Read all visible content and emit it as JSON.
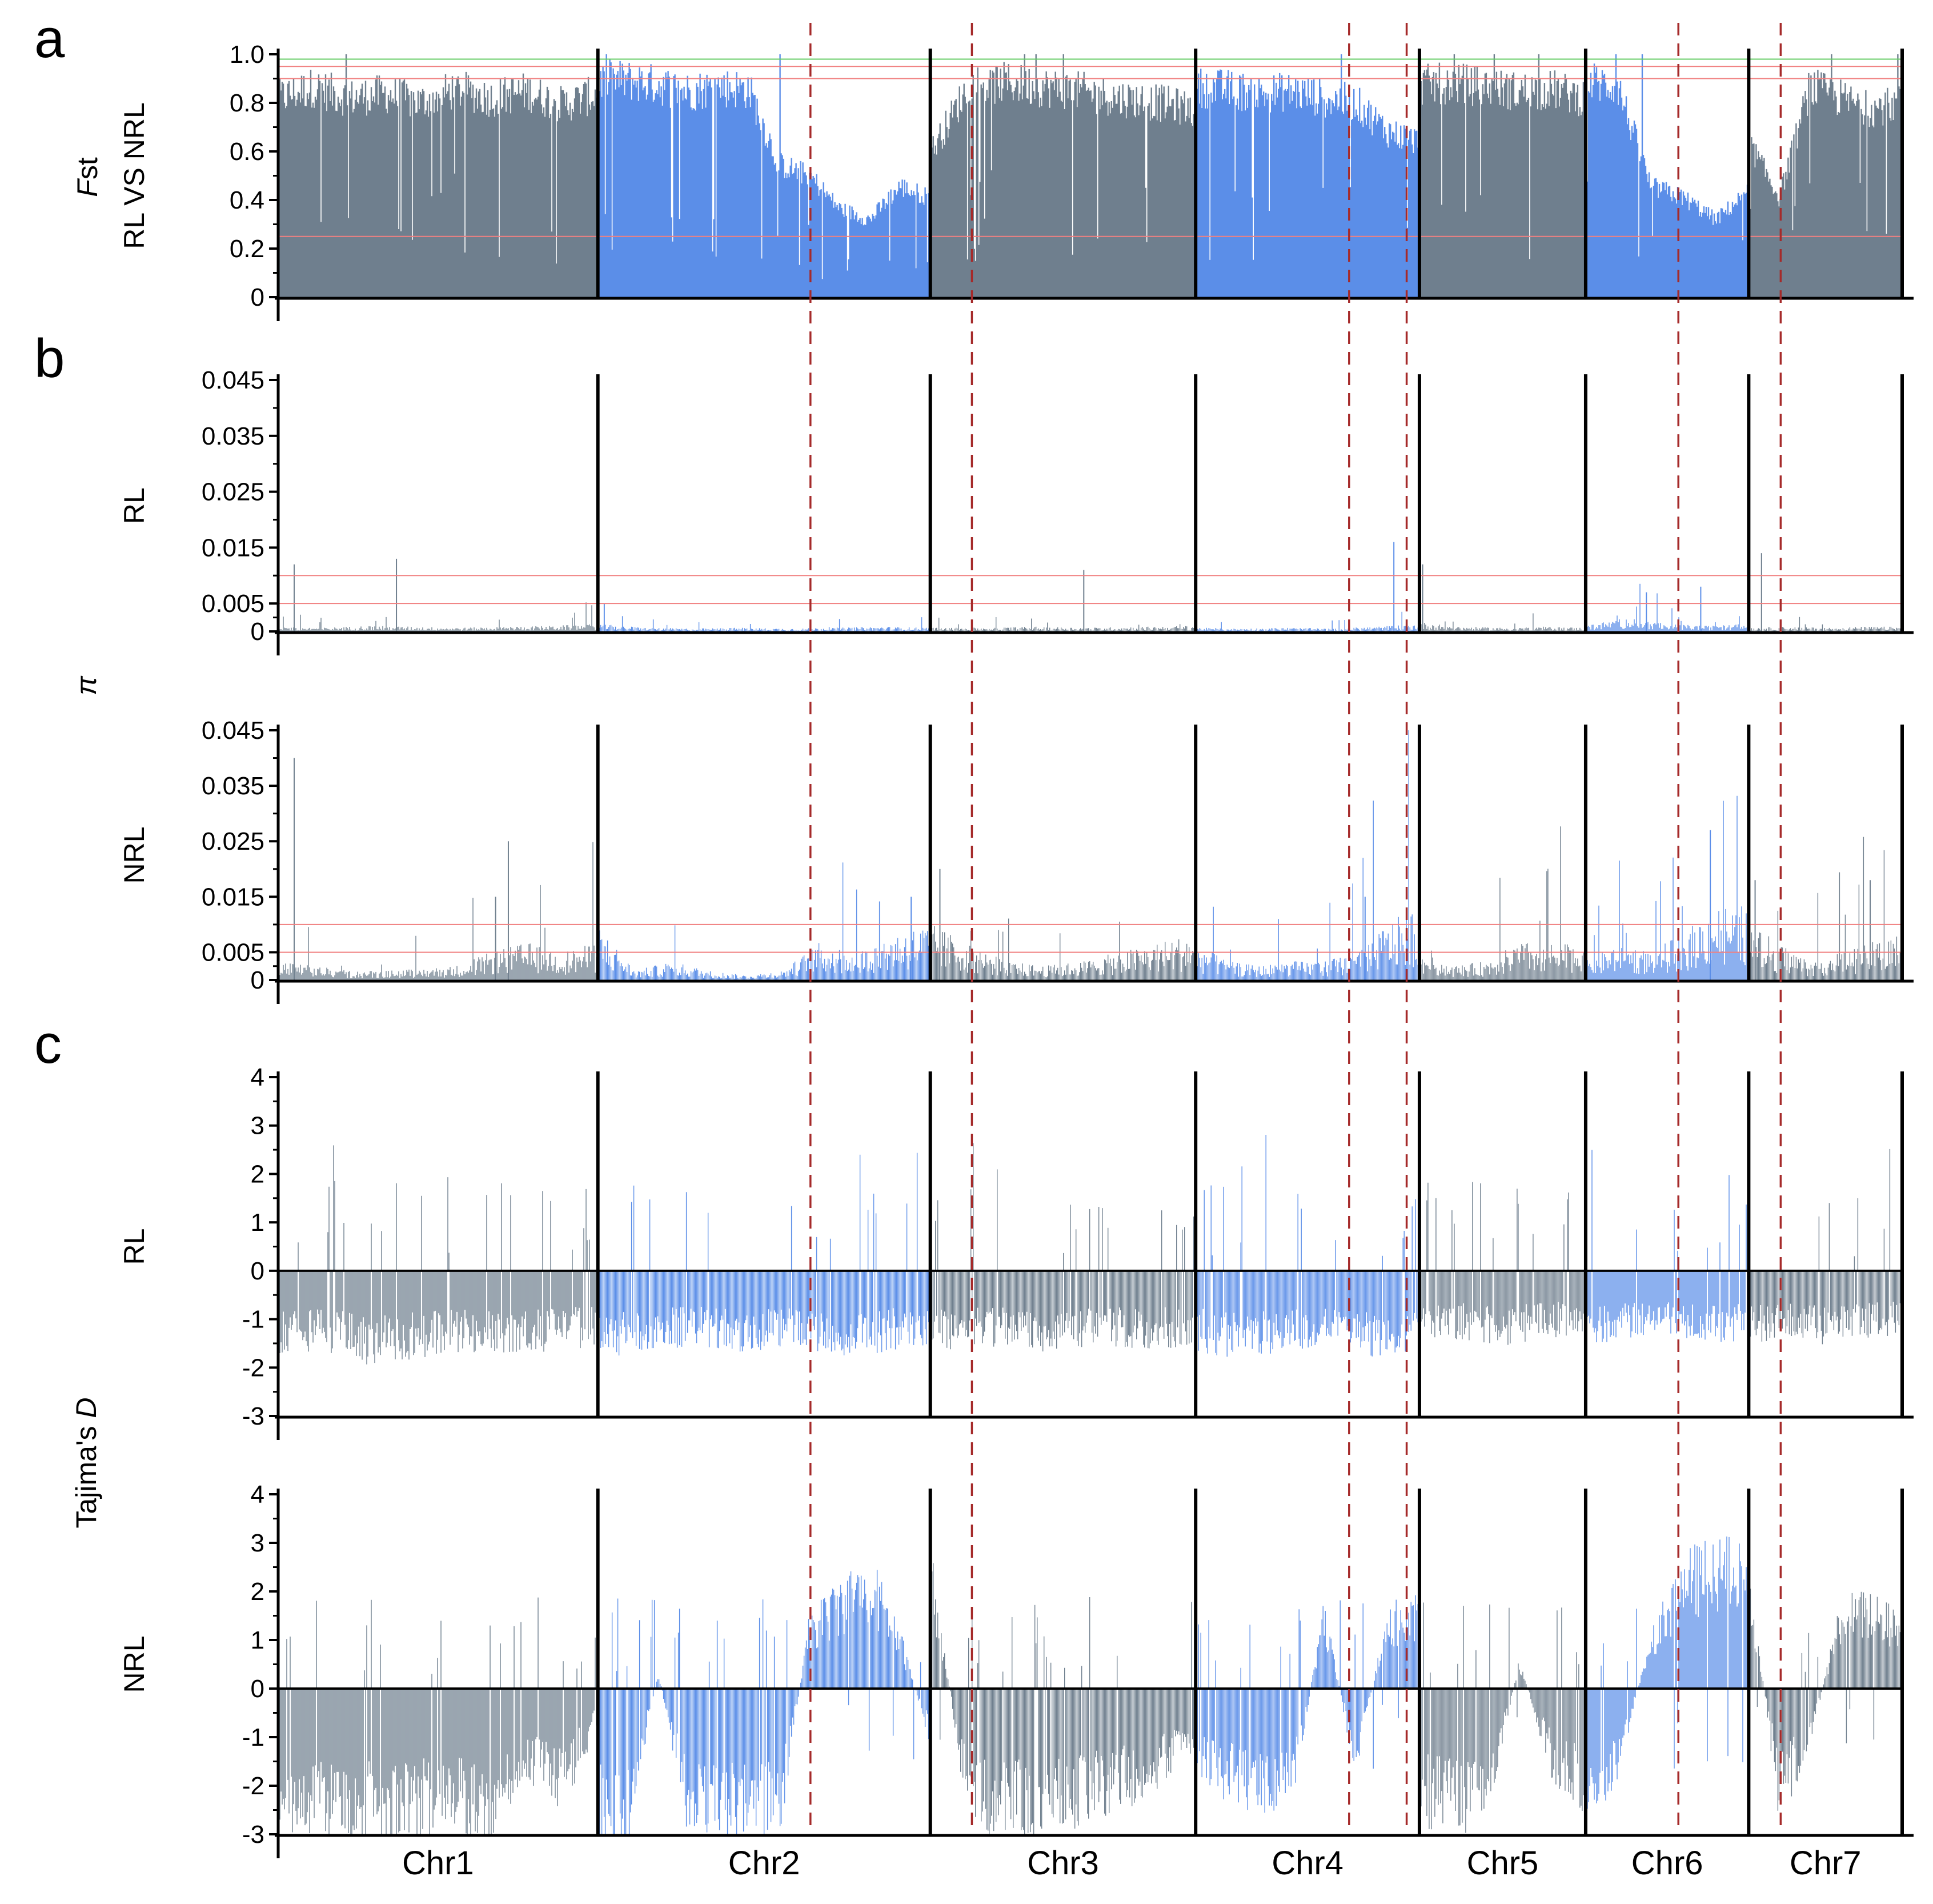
{
  "colors": {
    "gray": "#6f7f8e",
    "blue": "#5b8ee8",
    "dashed": "#a52a2a",
    "threshold": "#f08080",
    "green_line": "#66cc66",
    "axis": "#000000"
  },
  "chart_data": {
    "type": "genome-scan",
    "chromosomes": [
      {
        "name": "Chr1",
        "start": 0,
        "end": 1.0,
        "color": "gray"
      },
      {
        "name": "Chr2",
        "start": 1.0,
        "end": 2.04,
        "color": "blue"
      },
      {
        "name": "Chr3",
        "start": 2.04,
        "end": 2.87,
        "color": "gray"
      },
      {
        "name": "Chr4",
        "start": 2.87,
        "end": 3.57,
        "color": "blue"
      },
      {
        "name": "Chr5",
        "start": 3.57,
        "end": 4.09,
        "color": "gray"
      },
      {
        "name": "Chr6",
        "start": 4.09,
        "end": 4.6,
        "color": "blue"
      },
      {
        "name": "Chr7",
        "start": 4.6,
        "end": 5.08,
        "color": "gray"
      }
    ],
    "dashed_lines": [
      1.665,
      2.17,
      3.35,
      3.53,
      4.38,
      4.7
    ],
    "panels": [
      {
        "id": "fst",
        "letter": "a",
        "group_title": "Fst",
        "sub_label": "RL VS NRL",
        "ymin": 0,
        "ymax": 1.0,
        "ticks": [
          0,
          0.2,
          0.4,
          0.6,
          0.8,
          1.0
        ],
        "tick_labels": [
          "0",
          "0.2",
          "0.4",
          "0.6",
          "0.8",
          "1.0"
        ],
        "thresholds": [
          0.25,
          0.9,
          0.95
        ],
        "green_line": 0.98,
        "style": "bars",
        "profile_levels": [
          [
            0.9,
            0.95,
            0.9,
            0.92,
            0.88,
            0.94,
            0.9,
            0.93,
            0.87,
            0.92
          ],
          [
            0.98,
            0.98,
            0.96,
            0.93,
            0.95,
            0.94,
            0.6,
            0.55,
            0.4,
            0.35,
            0.5,
            0.45
          ],
          [
            0.65,
            0.95,
            0.97,
            0.95,
            0.93,
            0.9,
            0.88,
            0.85
          ],
          [
            0.95,
            0.94,
            0.92,
            0.93,
            0.9,
            0.88,
            0.75,
            0.7
          ],
          [
            0.96,
            0.97,
            0.95,
            0.93,
            0.94,
            0.9
          ],
          [
            0.98,
            0.95,
            0.5,
            0.45,
            0.35,
            0.48
          ],
          [
            0.7,
            0.45,
            0.95,
            0.9,
            0.85,
            0.88
          ]
        ]
      },
      {
        "id": "pi_rl",
        "letter": "b",
        "group_title": "π",
        "sub_label": "RL",
        "ymin": 0,
        "ymax": 0.045,
        "ticks": [
          0,
          0.005,
          0.015,
          0.025,
          0.035,
          0.045
        ],
        "tick_labels": [
          "0",
          "0.005",
          "0.015",
          "0.025",
          "0.035",
          "0.045"
        ],
        "thresholds": [
          0.005,
          0.01
        ],
        "style": "spikes",
        "profile_levels": [
          [
            0.0005,
            0.0004,
            0.0006,
            0.0005,
            0.0004,
            0.0005,
            0.0006,
            0.0008
          ],
          [
            0.0008,
            0.0004,
            0.0003,
            0.0004,
            0.0003,
            0.0004,
            0.0005,
            0.0004
          ],
          [
            0.0004,
            0.0004,
            0.0005,
            0.0004,
            0.0005,
            0.0006
          ],
          [
            0.0004,
            0.0003,
            0.0004,
            0.0003,
            0.0005,
            0.0008
          ],
          [
            0.001,
            0.0005,
            0.0004,
            0.0005,
            0.0004
          ],
          [
            0.0006,
            0.0015,
            0.0008,
            0.0006,
            0.0008
          ],
          [
            0.0004,
            0.0005,
            0.0004,
            0.0005,
            0.0005
          ]
        ],
        "peaks": [
          [
            0.05,
            0.012
          ],
          [
            0.37,
            0.013
          ],
          [
            1.02,
            0.005
          ],
          [
            2.52,
            0.011
          ],
          [
            3.49,
            0.016
          ],
          [
            3.58,
            0.012
          ],
          [
            4.28,
            0.007
          ],
          [
            4.45,
            0.008
          ],
          [
            4.64,
            0.014
          ]
        ]
      },
      {
        "id": "pi_nrl",
        "letter": "",
        "group_title": "",
        "sub_label": "NRL",
        "ymin": 0,
        "ymax": 0.045,
        "ticks": [
          0,
          0.005,
          0.015,
          0.025,
          0.035,
          0.045
        ],
        "tick_labels": [
          "0",
          "0.005",
          "0.015",
          "0.025",
          "0.035",
          "0.045"
        ],
        "thresholds": [
          0.005,
          0.01
        ],
        "style": "spikes",
        "profile_levels": [
          [
            0.002,
            0.0015,
            0.001,
            0.001,
            0.0012,
            0.0015,
            0.003,
            0.004,
            0.003,
            0.004
          ],
          [
            0.006,
            0.001,
            0.002,
            0.001,
            0.0005,
            0.001,
            0.004,
            0.003,
            0.005,
            0.006
          ],
          [
            0.006,
            0.004,
            0.002,
            0.0015,
            0.002,
            0.003,
            0.004,
            0.005
          ],
          [
            0.004,
            0.002,
            0.0015,
            0.002,
            0.002,
            0.003,
            0.006,
            0.008
          ],
          [
            0.003,
            0.0015,
            0.002,
            0.004,
            0.004,
            0.004
          ],
          [
            0.002,
            0.004,
            0.003,
            0.005,
            0.008,
            0.008
          ],
          [
            0.006,
            0.004,
            0.002,
            0.003,
            0.004,
            0.005
          ]
        ],
        "peaks": [
          [
            0.05,
            0.04
          ],
          [
            0.72,
            0.025
          ],
          [
            0.68,
            0.015
          ],
          [
            1.98,
            0.015
          ],
          [
            2.07,
            0.02
          ],
          [
            3.4,
            0.015
          ],
          [
            4.48,
            0.027
          ],
          [
            4.62,
            0.018
          ],
          [
            4.98,
            0.018
          ]
        ]
      },
      {
        "id": "taj_rl",
        "letter": "c",
        "group_title": "Tajima's D",
        "sub_label": "RL",
        "ymin": -3,
        "ymax": 4,
        "ticks": [
          -3,
          -2,
          -1,
          0,
          1,
          2,
          3,
          4
        ],
        "tick_labels": [
          "-3",
          "-2",
          "-1",
          "0",
          "1",
          "2",
          "3",
          "4"
        ],
        "thresholds": [],
        "style": "diverging",
        "profile_levels": [
          [
            -1.4,
            -1.3,
            -1.5,
            -1.4,
            -1.3,
            -1.4,
            -1.3,
            -1.2
          ],
          [
            -1.4,
            -1.3,
            -1.2,
            -1.3,
            -1.2,
            -1.4,
            -1.3,
            -1.2
          ],
          [
            -1.3,
            -1.2,
            -1.3,
            -1.2,
            -1.3,
            -1.2
          ],
          [
            -1.3,
            -1.4,
            -1.3,
            -1.2,
            -1.4,
            -1.3
          ],
          [
            -1.2,
            -1.1,
            -1.2,
            -1.1,
            -1.0
          ],
          [
            -1.2,
            -1.1,
            -1.0,
            -1.2,
            -1.1
          ],
          [
            -1.2,
            -1.1,
            -1.2,
            -1.1,
            -1.0
          ]
        ]
      },
      {
        "id": "taj_nrl",
        "letter": "",
        "group_title": "",
        "sub_label": "NRL",
        "ymin": -3,
        "ymax": 4,
        "ticks": [
          -3,
          -2,
          -1,
          0,
          1,
          2,
          3,
          4
        ],
        "tick_labels": [
          "-3",
          "-2",
          "-1",
          "0",
          "1",
          "2",
          "3",
          "4"
        ],
        "thresholds": [],
        "style": "diverging",
        "profile_levels": [
          [
            -2.6,
            -2.5,
            -2.4,
            -2.5,
            -2.4,
            -2.3,
            -2.5,
            -1.5,
            -2.0,
            -0.6
          ],
          [
            -2.6,
            -2.6,
            0.3,
            -2.4,
            -2.5,
            -2.4,
            -2.5,
            1.2,
            1.8,
            2.2,
            1.0,
            -1.0
          ],
          [
            2.5,
            -2.4,
            -2.5,
            -2.3,
            -2.2,
            -2.0,
            -1.6,
            -1.0
          ],
          [
            -1.5,
            -1.8,
            -2.0,
            -2.2,
            1.5,
            -1.5,
            1.4,
            1.5
          ],
          [
            -2.2,
            -2.3,
            -2.4,
            0.5,
            -1.5,
            -2.0
          ],
          [
            -2.3,
            -1.5,
            1.0,
            2.2,
            2.5,
            2.3
          ],
          [
            2.2,
            -2.2,
            -1.0,
            1.5,
            1.6,
            1.2
          ]
        ]
      }
    ],
    "x_tick_labels": [
      "Chr1",
      "Chr2",
      "Chr3",
      "Chr4",
      "Chr5",
      "Chr6",
      "Chr7"
    ]
  }
}
